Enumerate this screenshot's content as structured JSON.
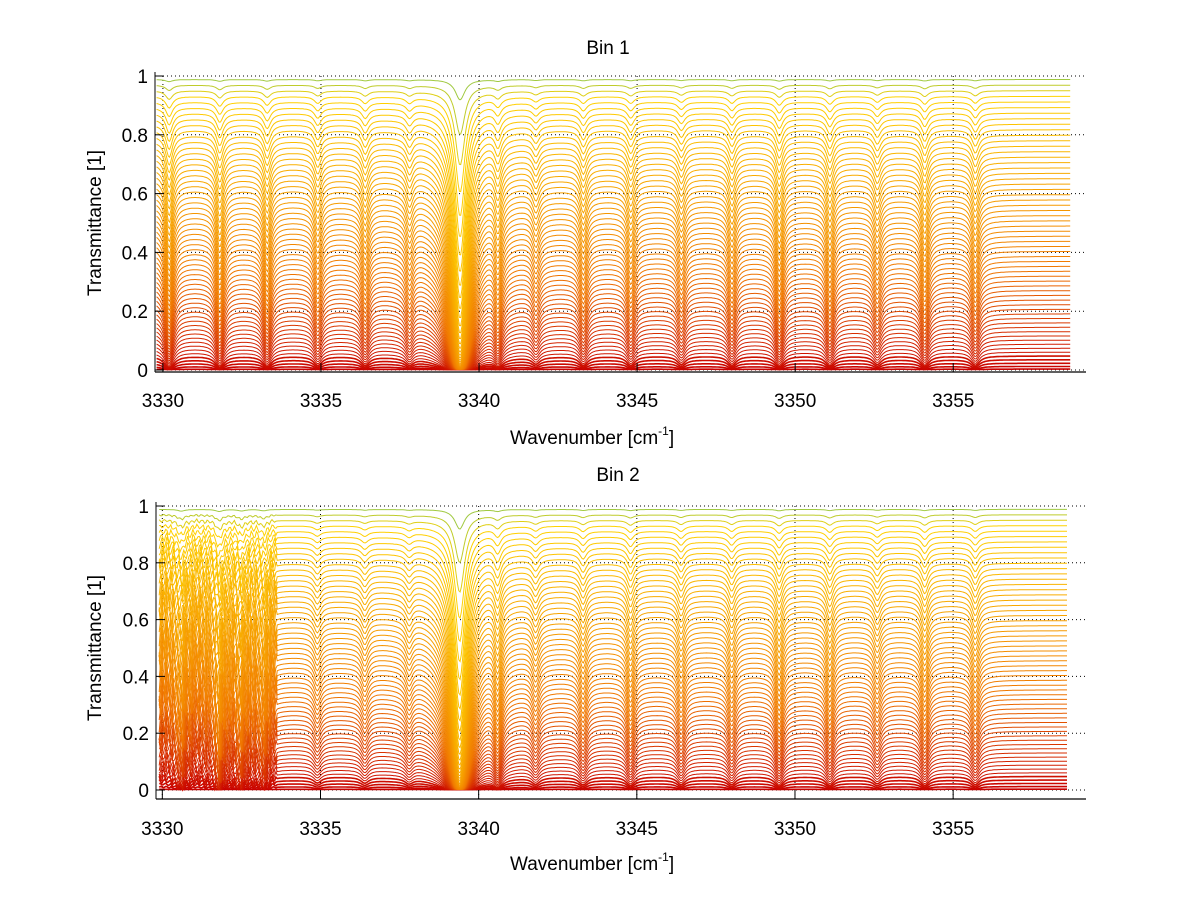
{
  "chart_data": [
    {
      "type": "line",
      "title": "Bin 1",
      "xlabel": "Wavenumber [cm",
      "xlabel_sup": "-1",
      "xlabel_end": "]",
      "ylabel": "Transmittance [1]",
      "xlim": [
        3329.75,
        3359.2
      ],
      "ylim": [
        0,
        1
      ],
      "grid": "dotted",
      "xticks": [
        3330,
        3335,
        3340,
        3345,
        3350,
        3355
      ],
      "xtick_labels": [
        "3330",
        "3335",
        "3340",
        "3345",
        "3350",
        "3355"
      ],
      "yticks": [
        0,
        0.2,
        0.4,
        0.6,
        0.8,
        1
      ],
      "ytick_labels": [
        "0",
        "0.2",
        "0.4",
        "0.6",
        "0.8",
        "1"
      ],
      "series_count": 60,
      "x_range": [
        3329.8,
        3358.7
      ],
      "absorption_lines": [
        {
          "center": 3330.2,
          "strength": 0.6
        },
        {
          "center": 3331.8,
          "strength": 0.5
        },
        {
          "center": 3333.3,
          "strength": 0.45
        },
        {
          "center": 3334.9,
          "strength": 0.35
        },
        {
          "center": 3336.4,
          "strength": 0.35
        },
        {
          "center": 3337.8,
          "strength": 0.3
        },
        {
          "center": 3339.4,
          "strength": 6.0
        },
        {
          "center": 3340.6,
          "strength": 0.45
        },
        {
          "center": 3341.8,
          "strength": 0.25
        },
        {
          "center": 3343.3,
          "strength": 0.35
        },
        {
          "center": 3344.8,
          "strength": 0.35
        },
        {
          "center": 3346.4,
          "strength": 0.3
        },
        {
          "center": 3348.0,
          "strength": 0.35
        },
        {
          "center": 3349.5,
          "strength": 0.45
        },
        {
          "center": 3351.1,
          "strength": 0.4
        },
        {
          "center": 3352.6,
          "strength": 0.3
        },
        {
          "center": 3354.1,
          "strength": 0.4
        },
        {
          "center": 3355.7,
          "strength": 0.35
        }
      ],
      "noisy_region": null
    },
    {
      "type": "line",
      "title": "Bin 2",
      "xlabel": "Wavenumber [cm",
      "xlabel_sup": "-1",
      "xlabel_end": "]",
      "ylabel": "Transmittance [1]",
      "xlim": [
        3329.8,
        3359.2
      ],
      "ylim": [
        0,
        1
      ],
      "grid": "dotted",
      "xticks": [
        3330,
        3335,
        3340,
        3345,
        3350,
        3355
      ],
      "xtick_labels": [
        "3330",
        "3335",
        "3340",
        "3345",
        "3350",
        "3355"
      ],
      "yticks": [
        0,
        0.2,
        0.4,
        0.6,
        0.8,
        1
      ],
      "ytick_labels": [
        "0",
        "0.2",
        "0.4",
        "0.6",
        "0.8",
        "1"
      ],
      "series_count": 60,
      "x_range": [
        3329.9,
        3358.6
      ],
      "absorption_lines": [
        {
          "center": 3330.6,
          "strength": 0.5
        },
        {
          "center": 3331.8,
          "strength": 0.6
        },
        {
          "center": 3332.5,
          "strength": 0.45
        },
        {
          "center": 3333.2,
          "strength": 0.4
        },
        {
          "center": 3334.9,
          "strength": 0.2
        },
        {
          "center": 3336.4,
          "strength": 0.2
        },
        {
          "center": 3337.8,
          "strength": 0.2
        },
        {
          "center": 3339.4,
          "strength": 6.0
        },
        {
          "center": 3340.6,
          "strength": 0.5
        },
        {
          "center": 3341.8,
          "strength": 0.25
        },
        {
          "center": 3343.3,
          "strength": 0.3
        },
        {
          "center": 3344.8,
          "strength": 0.35
        },
        {
          "center": 3346.4,
          "strength": 0.3
        },
        {
          "center": 3348.0,
          "strength": 0.3
        },
        {
          "center": 3349.5,
          "strength": 0.4
        },
        {
          "center": 3351.1,
          "strength": 0.35
        },
        {
          "center": 3352.6,
          "strength": 0.25
        },
        {
          "center": 3354.1,
          "strength": 0.35
        },
        {
          "center": 3355.7,
          "strength": 0.3
        }
      ],
      "noisy_region": [
        3329.9,
        3333.6
      ]
    }
  ],
  "colors": {
    "low": "#c80000",
    "mid": "#f07800",
    "high": "#ffd200",
    "top": "#40c080"
  }
}
